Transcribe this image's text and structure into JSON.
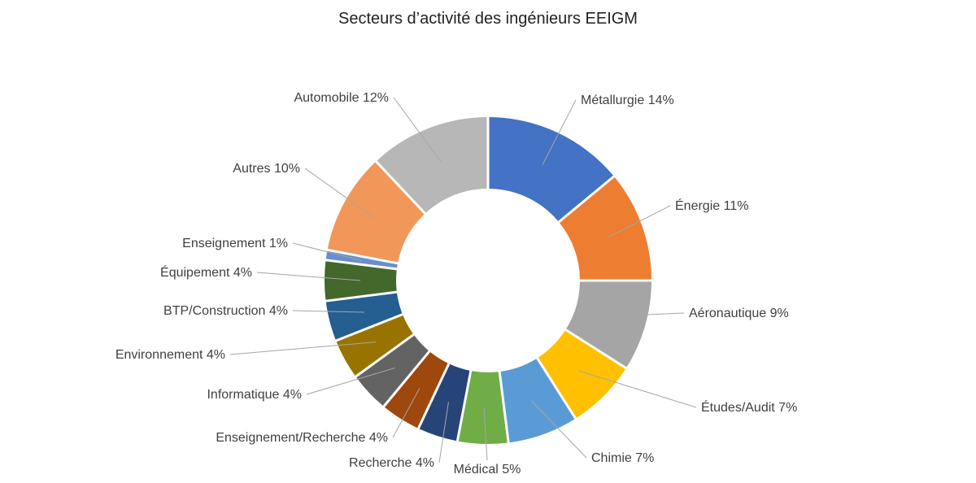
{
  "chart_data": {
    "type": "pie",
    "variant": "donut",
    "title": "Secteurs d’activité des ingénieurs EEIGM",
    "legend": "none",
    "slices": [
      {
        "label": "Métallurgie",
        "value": 14,
        "display": "Métallurgie 14%",
        "color": "#4472C4"
      },
      {
        "label": "Énergie",
        "value": 11,
        "display": "Énergie 11%",
        "color": "#ED7D31"
      },
      {
        "label": "Aéronautique",
        "value": 9,
        "display": "Aéronautique 9%",
        "color": "#A5A5A5"
      },
      {
        "label": "Études/Audit",
        "value": 7,
        "display": "Études/Audit 7%",
        "color": "#FFC000"
      },
      {
        "label": "Chimie",
        "value": 7,
        "display": "Chimie 7%",
        "color": "#5B9BD5"
      },
      {
        "label": "Médical",
        "value": 5,
        "display": "Médical 5%",
        "color": "#70AD47"
      },
      {
        "label": "Recherche",
        "value": 4,
        "display": "Recherche 4%",
        "color": "#264478"
      },
      {
        "label": "Enseignement/Recherche",
        "value": 4,
        "display": "Enseignement/Recherche 4%",
        "color": "#9E480E"
      },
      {
        "label": "Informatique",
        "value": 4,
        "display": "Informatique 4%",
        "color": "#636363"
      },
      {
        "label": "Environnement",
        "value": 4,
        "display": "Environnement 4%",
        "color": "#997300"
      },
      {
        "label": "BTP/Construction",
        "value": 4,
        "display": "BTP/Construction 4%",
        "color": "#255E91"
      },
      {
        "label": "Équipement",
        "value": 4,
        "display": "Équipement 4%",
        "color": "#43682B"
      },
      {
        "label": "Enseignement",
        "value": 1,
        "display": "Enseignement 1%",
        "color": "#698ED0"
      },
      {
        "label": "Autres",
        "value": 10,
        "display": "Autres 10%",
        "color": "#F1975A"
      },
      {
        "label": "Automobile",
        "value": 12,
        "display": "Automobile 12%",
        "color": "#B7B7B7"
      }
    ]
  }
}
